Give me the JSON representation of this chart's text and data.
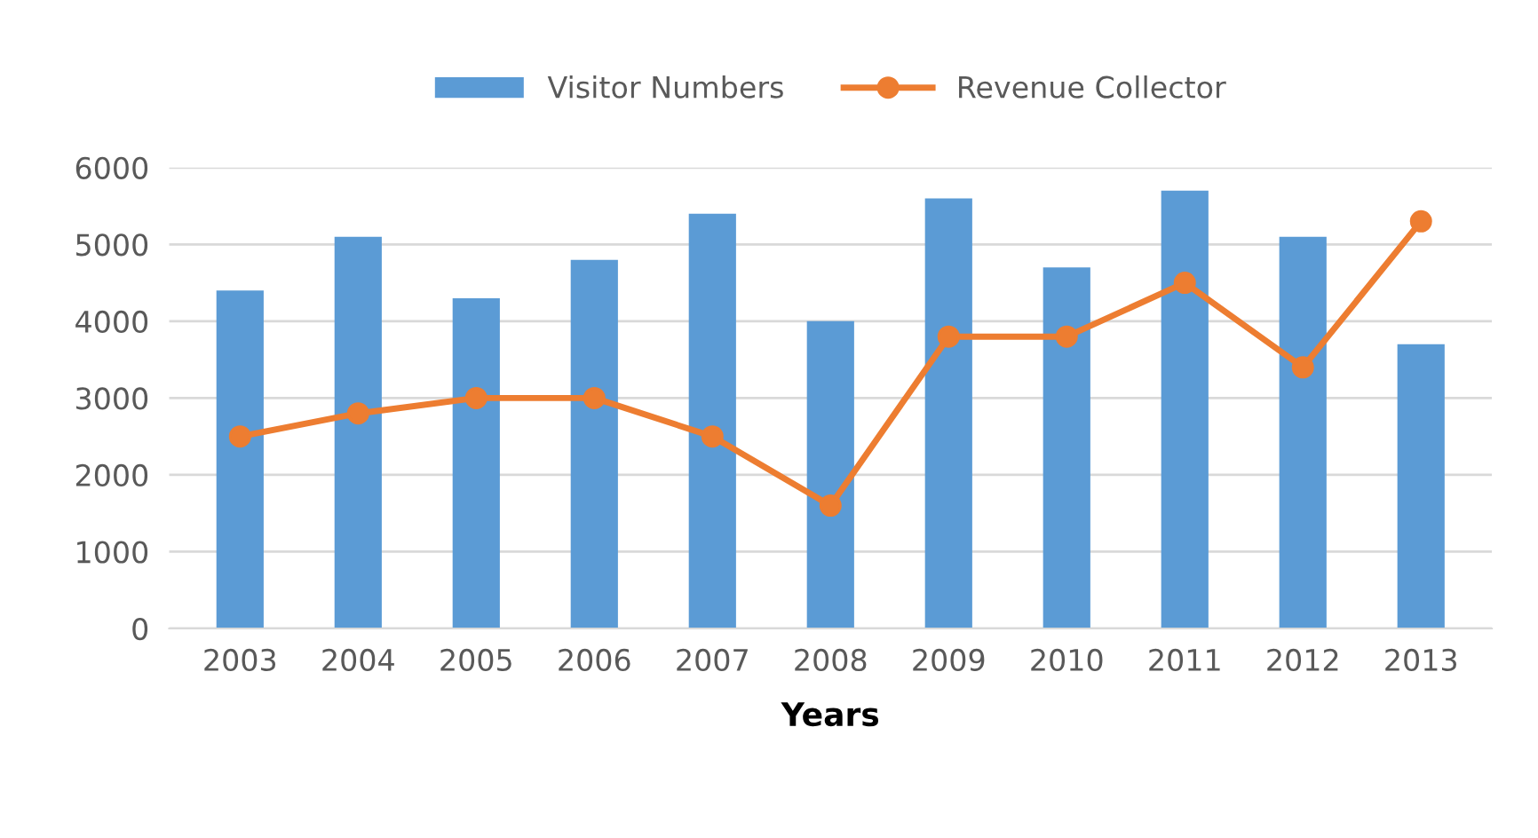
{
  "chart_data": {
    "type": "bar",
    "xlabel": "Years",
    "categories": [
      "2003",
      "2004",
      "2005",
      "2006",
      "2007",
      "2008",
      "2009",
      "2010",
      "2011",
      "2012",
      "2013"
    ],
    "series": [
      {
        "name": "Visitor Numbers",
        "color": "#5b9bd5",
        "values": [
          4400,
          5100,
          4300,
          4800,
          5400,
          4000,
          5600,
          4700,
          5700,
          5100,
          3700
        ]
      },
      {
        "name": "Revenue Collector",
        "type": "line",
        "color": "#ed7d31",
        "values": [
          2500,
          2800,
          3000,
          3000,
          2500,
          1600,
          3800,
          3800,
          4500,
          3400,
          5300
        ]
      }
    ],
    "ylim": [
      0,
      6000
    ],
    "yticks": [
      0,
      1000,
      2000,
      3000,
      4000,
      5000,
      6000
    ],
    "grid": "y",
    "legend": "top",
    "marker": "circle",
    "line_style": "solid"
  }
}
